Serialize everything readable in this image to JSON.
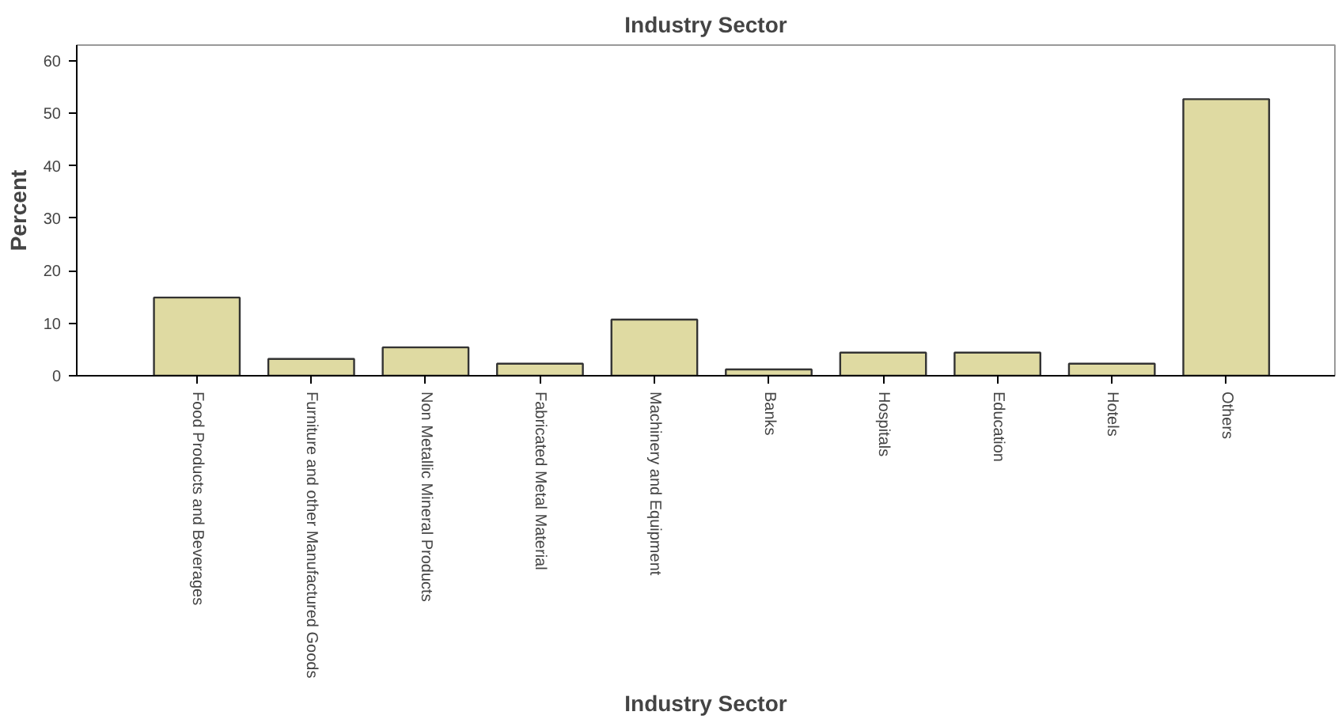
{
  "chart_data": {
    "type": "bar",
    "title": "Industry Sector",
    "xlabel": "Industry Sector",
    "ylabel": "Percent",
    "categories": [
      "Food Products and Beverages",
      "Furniture and other Manufactured Goods",
      "Non Metallic Mineral Products",
      "Fabricated Metal Material",
      "Machinery and Equipment",
      "Banks",
      "Hospitals",
      "Education",
      "Hotels",
      "Others"
    ],
    "values": [
      14.9,
      3.2,
      5.4,
      2.3,
      10.7,
      1.2,
      4.4,
      4.4,
      2.3,
      52.7
    ],
    "color": "#dfdaa2",
    "ylim": [
      0,
      63
    ],
    "yticks": [
      0,
      10,
      20,
      30,
      40,
      50,
      60
    ],
    "grid": false
  }
}
